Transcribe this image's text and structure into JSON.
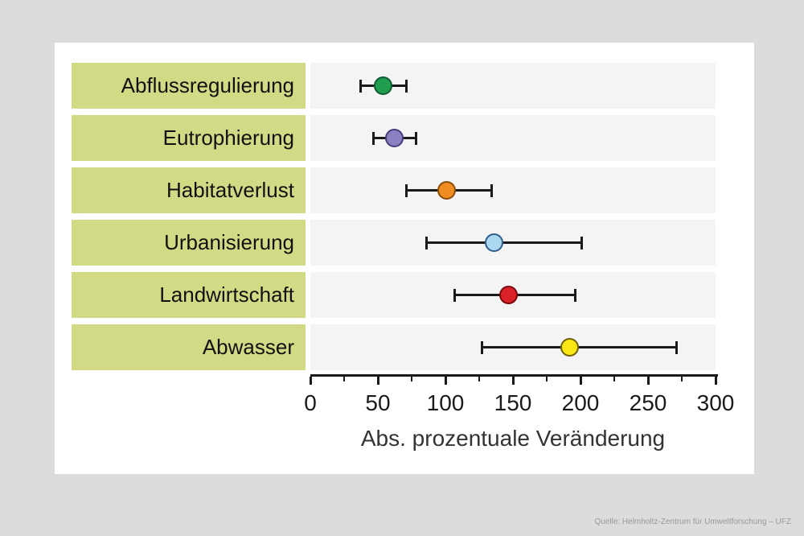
{
  "source": "Quelle: Helmholtz-Zentrum für Umweltforschung – UFZ",
  "colors": {
    "page_background": "#dcdcdc",
    "card_background": "#ffffff",
    "category_box": "#d3da85",
    "row_band": "#f4f4f4",
    "axis_and_error_bars": "#1a1a1a",
    "source_text": "#999999"
  },
  "chart_data": {
    "type": "scatter",
    "subtype": "horizontal-dot-with-error-bars",
    "title": "",
    "xlabel": "Abs. prozentuale Veränderung",
    "xlim": [
      0,
      300
    ],
    "x_major_ticks": [
      0,
      50,
      100,
      150,
      200,
      250,
      300
    ],
    "x_minor_ticks": [
      25,
      75,
      125,
      175,
      225,
      275
    ],
    "grid": false,
    "legend": "none",
    "categories": [
      "Abflussregulierung",
      "Eutrophierung",
      "Habitatverlust",
      "Urbanisierung",
      "Landwirtschaft",
      "Abwasser"
    ],
    "points": [
      {
        "label": "Abflussregulierung",
        "value": 54,
        "ci_low": 37,
        "ci_high": 71,
        "color": "#1f9e4f",
        "stroke": "#0e5c2f"
      },
      {
        "label": "Eutrophierung",
        "value": 62,
        "ci_low": 47,
        "ci_high": 78,
        "color": "#8b80c2",
        "stroke": "#463c78"
      },
      {
        "label": "Habitatverlust",
        "value": 101,
        "ci_low": 71,
        "ci_high": 134,
        "color": "#f08c22",
        "stroke": "#8a4d0a"
      },
      {
        "label": "Urbanisierung",
        "value": 136,
        "ci_low": 86,
        "ci_high": 201,
        "color": "#abd7f1",
        "stroke": "#2f5e8c"
      },
      {
        "label": "Landwirtschaft",
        "value": 147,
        "ci_low": 107,
        "ci_high": 196,
        "color": "#da2128",
        "stroke": "#79090d"
      },
      {
        "label": "Abwasser",
        "value": 192,
        "ci_low": 127,
        "ci_high": 271,
        "color": "#f8e714",
        "stroke": "#6e6006"
      }
    ]
  }
}
